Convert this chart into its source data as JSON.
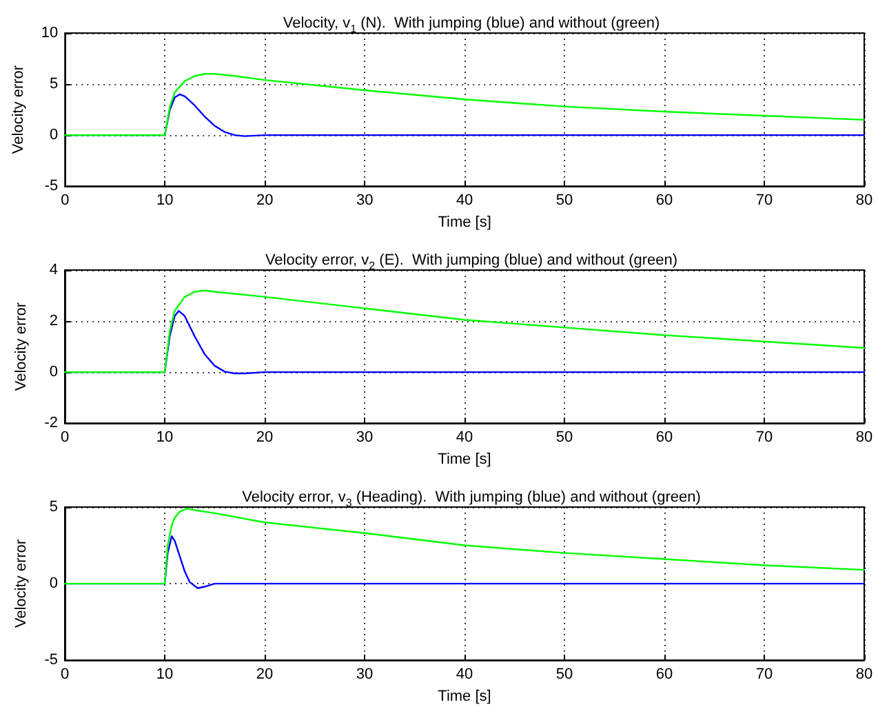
{
  "chart_data": [
    {
      "type": "line",
      "title": "Velocity, v$_{1}$ (N).  With jumping (blue) and without (green)",
      "xlabel": "Time [s]",
      "ylabel": "Velocity error",
      "xlim": [
        0,
        80
      ],
      "xticks": [
        0,
        10,
        20,
        30,
        40,
        50,
        60,
        70,
        80
      ],
      "ylim": [
        -5,
        10
      ],
      "yticks": [
        -5,
        0,
        5,
        10
      ],
      "grid": true,
      "marker": "none",
      "line_style": "solid",
      "series": [
        {
          "color": "#0000ff",
          "x": [
            0,
            10,
            10.5,
            11,
            11.5,
            12,
            13,
            14,
            15,
            16,
            17,
            18,
            20,
            25,
            80
          ],
          "values": [
            0,
            0,
            2.5,
            3.7,
            4.0,
            3.8,
            2.9,
            1.8,
            0.9,
            0.3,
            0.0,
            -0.1,
            0,
            0,
            0
          ]
        },
        {
          "color": "#00ff00",
          "x": [
            0,
            10,
            10.5,
            11,
            12,
            13,
            14,
            15,
            17,
            20,
            30,
            40,
            50,
            60,
            70,
            80
          ],
          "values": [
            0,
            0,
            2.8,
            4.2,
            5.3,
            5.8,
            6.0,
            6.0,
            5.8,
            5.4,
            4.4,
            3.5,
            2.8,
            2.3,
            1.9,
            1.5
          ]
        }
      ]
    },
    {
      "type": "line",
      "title": "Velocity error, v$_{2}$ (E).  With jumping (blue) and without (green)",
      "xlabel": "Time [s]",
      "ylabel": "Velocity error",
      "xlim": [
        0,
        80
      ],
      "xticks": [
        0,
        10,
        20,
        30,
        40,
        50,
        60,
        70,
        80
      ],
      "ylim": [
        -2,
        4
      ],
      "yticks": [
        -2,
        0,
        2,
        4
      ],
      "grid": true,
      "marker": "none",
      "line_style": "solid",
      "series": [
        {
          "color": "#0000ff",
          "x": [
            0,
            10,
            10.5,
            11,
            11.4,
            12,
            13,
            14,
            15,
            16,
            17,
            18,
            20,
            80
          ],
          "values": [
            0,
            0,
            1.4,
            2.2,
            2.4,
            2.2,
            1.4,
            0.7,
            0.25,
            0.02,
            -0.05,
            -0.05,
            0,
            0
          ]
        },
        {
          "color": "#00ff00",
          "x": [
            0,
            10,
            10.5,
            11,
            12,
            13,
            14,
            15,
            20,
            30,
            40,
            50,
            60,
            70,
            80
          ],
          "values": [
            0,
            0,
            1.6,
            2.4,
            2.95,
            3.15,
            3.2,
            3.15,
            2.95,
            2.5,
            2.05,
            1.75,
            1.45,
            1.2,
            0.95
          ]
        }
      ]
    },
    {
      "type": "line",
      "title": "Velocity error, v$_{3}$ (Heading).  With jumping (blue) and without (green)",
      "xlabel": "Time [s]",
      "ylabel": "Velocity error",
      "xlim": [
        0,
        80
      ],
      "xticks": [
        0,
        10,
        20,
        30,
        40,
        50,
        60,
        70,
        80
      ],
      "ylim": [
        -5,
        5
      ],
      "yticks": [
        -5,
        0,
        5
      ],
      "grid": true,
      "marker": "none",
      "line_style": "solid",
      "series": [
        {
          "color": "#0000ff",
          "x": [
            0,
            10,
            10.3,
            10.7,
            11,
            11.5,
            12,
            12.5,
            13.3,
            14,
            15,
            16,
            80
          ],
          "values": [
            0,
            0,
            2.0,
            3.1,
            2.8,
            1.8,
            0.8,
            0.1,
            -0.3,
            -0.2,
            0,
            0,
            0
          ]
        },
        {
          "color": "#00ff00",
          "x": [
            0,
            10,
            10.3,
            10.7,
            11,
            11.5,
            12.2,
            13,
            15,
            20,
            30,
            40,
            50,
            60,
            70,
            80
          ],
          "values": [
            0,
            0,
            2.5,
            3.8,
            4.3,
            4.7,
            4.9,
            4.8,
            4.6,
            4.0,
            3.3,
            2.5,
            2.0,
            1.6,
            1.2,
            0.9
          ]
        }
      ]
    }
  ]
}
